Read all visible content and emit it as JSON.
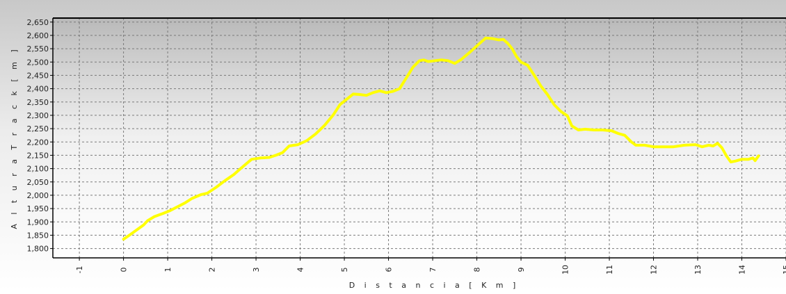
{
  "chart_data": {
    "type": "line",
    "xlabel": "D i s t a n c i a   [ K m ]",
    "ylabel": "A l t u r a   T r a c k   [ m ]",
    "xlim": [
      -1.6,
      15
    ],
    "ylim": [
      1765,
      2665
    ],
    "grid": true,
    "x_ticks": [
      -1,
      0,
      1,
      2,
      3,
      4,
      5,
      6,
      7,
      8,
      9,
      10,
      11,
      12,
      13,
      14,
      15
    ],
    "y_ticks": [
      1800,
      1850,
      1900,
      1950,
      2000,
      2050,
      2100,
      2150,
      2200,
      2250,
      2300,
      2350,
      2400,
      2450,
      2500,
      2550,
      2600,
      2650
    ],
    "y_tick_labels": [
      "1,800",
      "1,850",
      "1,900",
      "1,950",
      "2,000",
      "2,050",
      "2,100",
      "2,150",
      "2,200",
      "2,250",
      "2,300",
      "2,350",
      "2,400",
      "2,450",
      "2,500",
      "2,550",
      "2,600",
      "2,650"
    ],
    "series": [
      {
        "color": "#ffff00",
        "x": [
          0,
          0.15,
          0.3,
          0.45,
          0.55,
          0.7,
          0.9,
          1.05,
          1.2,
          1.4,
          1.55,
          1.75,
          1.9,
          2.1,
          2.3,
          2.5,
          2.65,
          2.9,
          3.1,
          3.3,
          3.45,
          3.6,
          3.75,
          3.95,
          4.15,
          4.35,
          4.55,
          4.75,
          4.9,
          5.05,
          5.2,
          5.35,
          5.5,
          5.65,
          5.8,
          5.95,
          6.1,
          6.25,
          6.4,
          6.55,
          6.7,
          6.8,
          6.9,
          7.05,
          7.2,
          7.35,
          7.5,
          7.65,
          7.85,
          8.05,
          8.2,
          8.35,
          8.5,
          8.6,
          8.7,
          8.8,
          8.9,
          9.0,
          9.15,
          9.3,
          9.45,
          9.6,
          9.75,
          9.9,
          10.05,
          10.15,
          10.3,
          10.45,
          10.65,
          10.85,
          11.05,
          11.2,
          11.35,
          11.5,
          11.6,
          11.8,
          12.0,
          12.2,
          12.45,
          12.7,
          12.95,
          13.1,
          13.25,
          13.35,
          13.45,
          13.55,
          13.65,
          13.75,
          13.85,
          14.0,
          14.15,
          14.25,
          14.3,
          14.38
        ],
        "y": [
          1835,
          1852,
          1870,
          1888,
          1905,
          1920,
          1932,
          1942,
          1955,
          1972,
          1988,
          2002,
          2008,
          2030,
          2055,
          2078,
          2100,
          2135,
          2140,
          2142,
          2150,
          2160,
          2185,
          2190,
          2205,
          2230,
          2262,
          2302,
          2340,
          2360,
          2380,
          2378,
          2375,
          2385,
          2392,
          2385,
          2390,
          2400,
          2440,
          2480,
          2505,
          2508,
          2502,
          2505,
          2508,
          2505,
          2495,
          2510,
          2538,
          2568,
          2590,
          2588,
          2583,
          2585,
          2570,
          2550,
          2520,
          2500,
          2488,
          2450,
          2410,
          2378,
          2340,
          2315,
          2298,
          2260,
          2245,
          2248,
          2245,
          2245,
          2242,
          2232,
          2225,
          2200,
          2188,
          2188,
          2182,
          2182,
          2182,
          2188,
          2190,
          2182,
          2188,
          2185,
          2195,
          2178,
          2148,
          2125,
          2128,
          2135,
          2135,
          2140,
          2130,
          2148
        ]
      }
    ]
  }
}
